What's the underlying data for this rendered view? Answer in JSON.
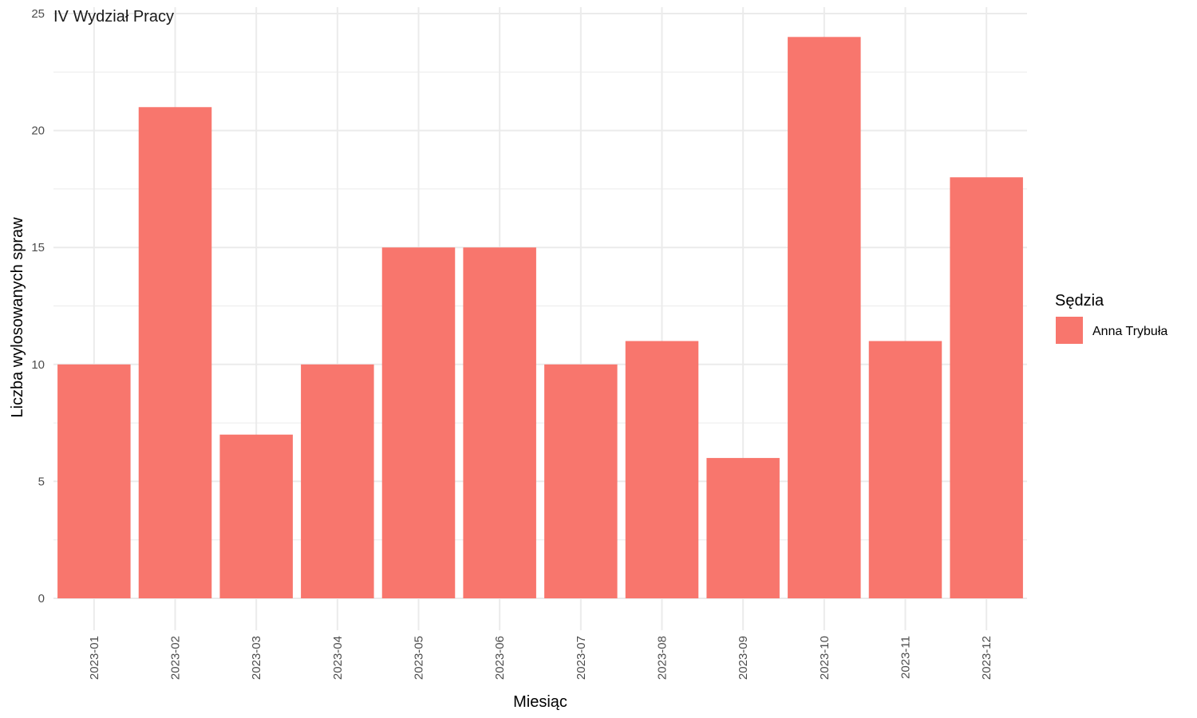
{
  "chart_data": {
    "type": "bar",
    "title": "IV Wydział Pracy",
    "xlabel": "Miesiąc",
    "ylabel": "Liczba wylosowanych spraw",
    "categories": [
      "2023-01",
      "2023-02",
      "2023-03",
      "2023-04",
      "2023-05",
      "2023-06",
      "2023-07",
      "2023-08",
      "2023-09",
      "2023-10",
      "2023-11",
      "2023-12"
    ],
    "series": [
      {
        "name": "Anna Trybuła",
        "values": [
          10,
          21,
          7,
          10,
          15,
          15,
          10,
          11,
          6,
          24,
          11,
          18
        ],
        "color": "#F8766D"
      }
    ],
    "ylim": [
      0,
      25
    ],
    "yticks": [
      0,
      5,
      10,
      15,
      20,
      25
    ],
    "grid": true,
    "legend": {
      "title": "Sędzia",
      "position": "right"
    }
  }
}
